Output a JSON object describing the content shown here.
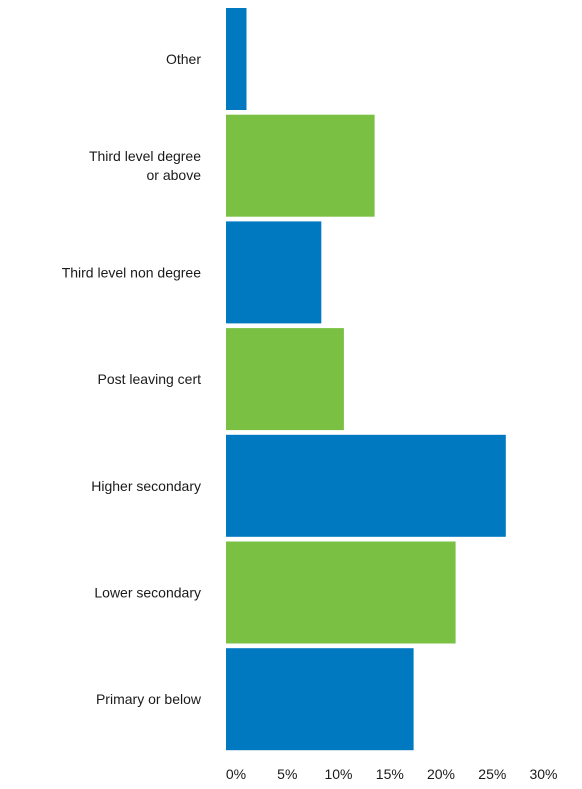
{
  "chart_data": {
    "type": "bar",
    "orientation": "horizontal",
    "title": "",
    "xlabel": "",
    "ylabel": "",
    "categories": [
      "Other",
      "Third level degree or above",
      "Third level non degree",
      "Post leaving cert",
      "Higher secondary",
      "Lower secondary",
      "Primary or below"
    ],
    "category_lines": [
      [
        "Other"
      ],
      [
        "Third level degree",
        "or above"
      ],
      [
        "Third level non degree"
      ],
      [
        "Post leaving cert"
      ],
      [
        "Higher secondary"
      ],
      [
        "Lower secondary"
      ],
      [
        "Primary or below"
      ]
    ],
    "values": [
      2,
      14.5,
      9.3,
      11.5,
      27.3,
      22.4,
      18.3
    ],
    "bar_colors": [
      "#0079c1",
      "#7ac143",
      "#0079c1",
      "#7ac143",
      "#0079c1",
      "#7ac143",
      "#0079c1"
    ],
    "xlim": [
      0,
      30
    ],
    "xticks": [
      "0%",
      "5%",
      "10%",
      "15%",
      "20%",
      "25%",
      "30%"
    ],
    "xtick_values": [
      0,
      5,
      10,
      15,
      20,
      25,
      30
    ],
    "grid": false,
    "legend": "none"
  }
}
